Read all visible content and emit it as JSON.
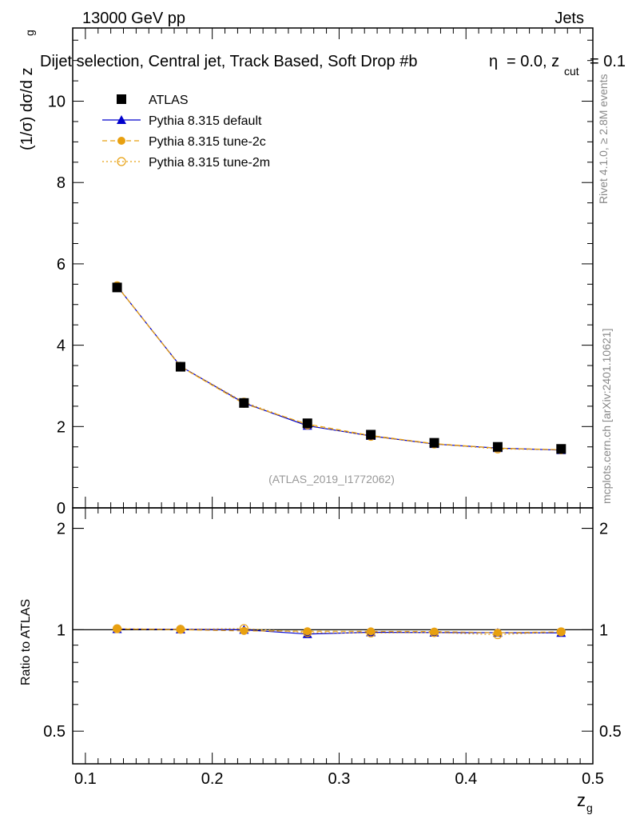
{
  "header": {
    "left": "13000 GeV pp",
    "right": "Jets"
  },
  "side_labels": {
    "rivet": "Rivet 4.1.0, ≥ 2.8M events",
    "mcplots": "mcplots.cern.ch [arXiv:2401.10621]"
  },
  "chart_data": {
    "type": "scatter",
    "title": "Dijet selection, Central jet, Track Based, Soft Drop #b",
    "title_suffix_a": "= 0.0, z",
    "title_sub": "cut",
    "title_suffix_b": "= 0.1",
    "eta_symbol": "η",
    "analysis_tag": "(ATLAS_2019_I1772062)",
    "ylabel_main": "(1/σ) dσ/d z",
    "ylabel_sub": "g",
    "ylabel_ratio": "Ratio to ATLAS",
    "xlabel": "z",
    "xlabel_sub": "g",
    "xlim": [
      0.09,
      0.5
    ],
    "ylim_main": [
      0,
      11.8
    ],
    "ylim_ratio": [
      0.4,
      2.3
    ],
    "x_ticks": [
      "0.1",
      "0.2",
      "0.3",
      "0.4",
      "0.5"
    ],
    "x_tick_values": [
      0.1,
      0.2,
      0.3,
      0.4,
      0.5
    ],
    "y_ticks_main": [
      "0",
      "2",
      "4",
      "6",
      "8",
      "10"
    ],
    "y_tick_values_main": [
      0,
      2,
      4,
      6,
      8,
      10
    ],
    "y_ticks_ratio": [
      "0.5",
      "1",
      "2"
    ],
    "y_tick_values_ratio": [
      0.5,
      1,
      2
    ],
    "x": [
      0.125,
      0.175,
      0.225,
      0.275,
      0.325,
      0.375,
      0.425,
      0.475
    ],
    "series": [
      {
        "name": "ATLAS",
        "color": "#000000",
        "marker": "square",
        "values": [
          5.42,
          3.47,
          2.58,
          2.08,
          1.8,
          1.6,
          1.5,
          1.45
        ]
      },
      {
        "name": "Pythia 8.315 default",
        "color": "#0000cc",
        "marker": "triangle",
        "line": "solid",
        "values": [
          5.45,
          3.48,
          2.58,
          2.02,
          1.77,
          1.57,
          1.47,
          1.42
        ],
        "ratio": [
          1.005,
          1.003,
          1.0,
          0.971,
          0.983,
          0.981,
          0.98,
          0.979
        ]
      },
      {
        "name": "Pythia 8.315 tune-2c",
        "color": "#e8a010",
        "marker": "circle",
        "line": "dashed",
        "values": [
          5.45,
          3.47,
          2.56,
          2.06,
          1.78,
          1.58,
          1.47,
          1.43
        ],
        "ratio": [
          1.005,
          1.0,
          0.992,
          0.99,
          0.989,
          0.988,
          0.98,
          0.986
        ]
      },
      {
        "name": "Pythia 8.315 tune-2m",
        "color": "#e8a010",
        "marker": "circle-open",
        "line": "dotted",
        "values": [
          5.46,
          3.48,
          2.6,
          2.04,
          1.76,
          1.57,
          1.45,
          1.43
        ],
        "ratio": [
          1.007,
          1.003,
          1.008,
          0.981,
          0.978,
          0.981,
          0.967,
          0.986
        ]
      }
    ],
    "legend_position": "top-left",
    "grid": false
  }
}
